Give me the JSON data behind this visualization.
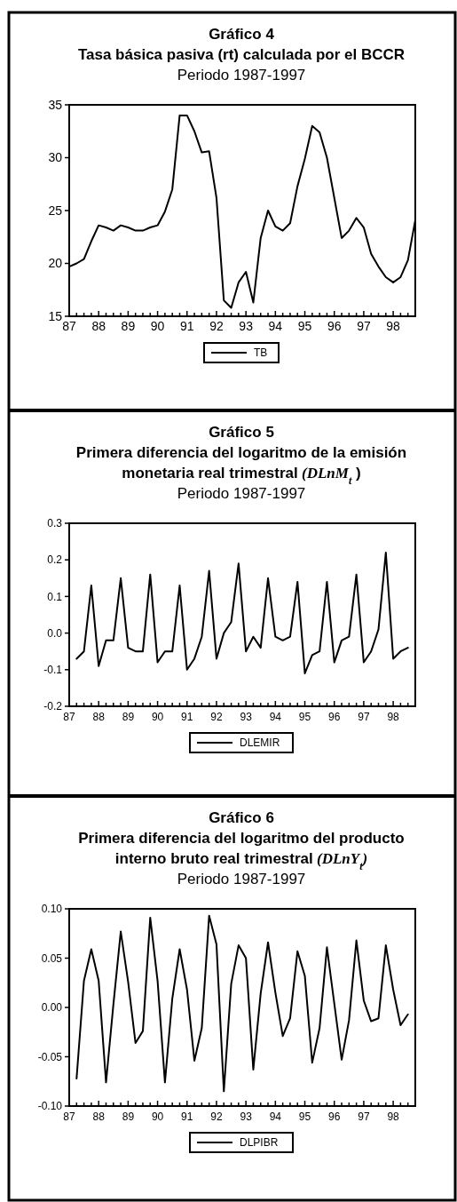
{
  "chart_data": [
    {
      "type": "line",
      "title": "Gráfico 4",
      "subtitle": "Tasa básica pasiva (rt) calculada por el BCCR",
      "annotations": [
        "Periodo 1987-1997"
      ],
      "legend": "bottom",
      "grid": false,
      "marker": "none",
      "line_style": "solid",
      "x": [
        1987,
        1987.25,
        1987.5,
        1987.75,
        1988,
        1988.25,
        1988.5,
        1988.75,
        1989,
        1989.25,
        1989.5,
        1989.75,
        1990,
        1990.25,
        1990.5,
        1990.75,
        1991,
        1991.25,
        1991.5,
        1991.75,
        1992,
        1992.25,
        1992.5,
        1992.75,
        1993,
        1993.25,
        1993.5,
        1993.75,
        1994,
        1994.25,
        1994.5,
        1994.75,
        1995,
        1995.25,
        1995.5,
        1995.75,
        1996,
        1996.25,
        1996.5,
        1996.75,
        1997,
        1997.25,
        1997.5,
        1997.75,
        1998,
        1998.25,
        1998.5,
        1998.75
      ],
      "series": [
        {
          "name": "TB",
          "color": "#000000",
          "values": [
            19.7,
            20.0,
            20.4,
            22.1,
            23.6,
            23.4,
            23.1,
            23.6,
            23.4,
            23.1,
            23.1,
            23.4,
            23.6,
            24.9,
            27.0,
            34.0,
            34.0,
            32.5,
            30.5,
            30.6,
            26.2,
            16.5,
            15.8,
            18.2,
            19.2,
            16.3,
            22.4,
            25.0,
            23.5,
            23.1,
            23.8,
            27.3,
            29.9,
            33.0,
            32.4,
            30.0,
            26.2,
            22.4,
            23.1,
            24.3,
            23.4,
            20.9,
            19.7,
            18.7,
            18.2,
            18.7,
            20.3,
            24.1
          ]
        }
      ],
      "xlim": [
        1987,
        1998.75
      ],
      "ylim": [
        15,
        35
      ],
      "yticks": [
        15,
        20,
        25,
        30,
        35
      ],
      "xticks": [
        {
          "value": 1987,
          "label": "87"
        },
        {
          "value": 1987.25,
          "label": null
        },
        {
          "value": 1987.5,
          "label": null
        },
        {
          "value": 1987.75,
          "label": null
        },
        {
          "value": 1988,
          "label": "88"
        },
        {
          "value": 1988.25,
          "label": null
        },
        {
          "value": 1988.5,
          "label": null
        },
        {
          "value": 1988.75,
          "label": null
        },
        {
          "value": 1989,
          "label": "89"
        },
        {
          "value": 1989.25,
          "label": null
        },
        {
          "value": 1989.5,
          "label": null
        },
        {
          "value": 1989.75,
          "label": null
        },
        {
          "value": 1990,
          "label": "90"
        },
        {
          "value": 1990.25,
          "label": null
        },
        {
          "value": 1990.5,
          "label": null
        },
        {
          "value": 1990.75,
          "label": null
        },
        {
          "value": 1991,
          "label": "91"
        },
        {
          "value": 1991.25,
          "label": null
        },
        {
          "value": 1991.5,
          "label": null
        },
        {
          "value": 1991.75,
          "label": null
        },
        {
          "value": 1992,
          "label": "92"
        },
        {
          "value": 1992.25,
          "label": null
        },
        {
          "value": 1992.5,
          "label": null
        },
        {
          "value": 1992.75,
          "label": null
        },
        {
          "value": 1993,
          "label": "93"
        },
        {
          "value": 1993.25,
          "label": null
        },
        {
          "value": 1993.5,
          "label": null
        },
        {
          "value": 1993.75,
          "label": null
        },
        {
          "value": 1994,
          "label": "94"
        },
        {
          "value": 1994.25,
          "label": null
        },
        {
          "value": 1994.5,
          "label": null
        },
        {
          "value": 1994.75,
          "label": null
        },
        {
          "value": 1995,
          "label": "95"
        },
        {
          "value": 1995.25,
          "label": null
        },
        {
          "value": 1995.5,
          "label": null
        },
        {
          "value": 1995.75,
          "label": null
        },
        {
          "value": 1996,
          "label": "96"
        },
        {
          "value": 1996.25,
          "label": null
        },
        {
          "value": 1996.5,
          "label": null
        },
        {
          "value": 1996.75,
          "label": null
        },
        {
          "value": 1997,
          "label": "97"
        },
        {
          "value": 1997.25,
          "label": null
        },
        {
          "value": 1997.5,
          "label": null
        },
        {
          "value": 1997.75,
          "label": null
        },
        {
          "value": 1998,
          "label": "98"
        },
        {
          "value": 1998.25,
          "label": null
        },
        {
          "value": 1998.5,
          "label": null
        }
      ]
    },
    {
      "type": "line",
      "title": "Gráfico 5",
      "subtitle": "Primera diferencia del logaritmo de la emisión monetaria real trimestral (DLnM$_{t}$ )",
      "annotations": [
        "Periodo 1987-1997"
      ],
      "legend": "bottom",
      "grid": false,
      "marker": "none",
      "line_style": "solid",
      "x": [
        1987.25,
        1987.5,
        1987.75,
        1988,
        1988.25,
        1988.5,
        1988.75,
        1989,
        1989.25,
        1989.5,
        1989.75,
        1990,
        1990.25,
        1990.5,
        1990.75,
        1991,
        1991.25,
        1991.5,
        1991.75,
        1992,
        1992.25,
        1992.5,
        1992.75,
        1993,
        1993.25,
        1993.5,
        1993.75,
        1994,
        1994.25,
        1994.5,
        1994.75,
        1995,
        1995.25,
        1995.5,
        1995.75,
        1996,
        1996.25,
        1996.5,
        1996.75,
        1997,
        1997.25,
        1997.5,
        1997.75,
        1998,
        1998.25,
        1998.5
      ],
      "series": [
        {
          "name": "DLEMIR",
          "color": "#000000",
          "values": [
            -0.07,
            -0.05,
            0.13,
            -0.09,
            -0.02,
            -0.02,
            0.15,
            -0.04,
            -0.05,
            -0.05,
            0.16,
            -0.08,
            -0.05,
            -0.05,
            0.13,
            -0.1,
            -0.07,
            -0.01,
            0.17,
            -0.07,
            0.0,
            0.03,
            0.19,
            -0.05,
            -0.01,
            -0.04,
            0.15,
            -0.01,
            -0.02,
            -0.01,
            0.14,
            -0.11,
            -0.06,
            -0.05,
            0.14,
            -0.08,
            -0.02,
            -0.01,
            0.16,
            -0.08,
            -0.05,
            0.01,
            0.22,
            -0.07,
            -0.05,
            -0.04
          ]
        }
      ],
      "xlim": [
        1987,
        1998.75
      ],
      "ylim": [
        -0.2,
        0.3
      ],
      "yticks": [
        -0.2,
        -0.1,
        {
          "value": 0,
          "label": "0.0"
        },
        0.1,
        0.2,
        0.3
      ],
      "xticks": [
        {
          "value": 1987,
          "label": "87"
        },
        {
          "value": 1987.25,
          "label": null
        },
        {
          "value": 1987.5,
          "label": null
        },
        {
          "value": 1987.75,
          "label": null
        },
        {
          "value": 1988,
          "label": "88"
        },
        {
          "value": 1988.25,
          "label": null
        },
        {
          "value": 1988.5,
          "label": null
        },
        {
          "value": 1988.75,
          "label": null
        },
        {
          "value": 1989,
          "label": "89"
        },
        {
          "value": 1989.25,
          "label": null
        },
        {
          "value": 1989.5,
          "label": null
        },
        {
          "value": 1989.75,
          "label": null
        },
        {
          "value": 1990,
          "label": "90"
        },
        {
          "value": 1990.25,
          "label": null
        },
        {
          "value": 1990.5,
          "label": null
        },
        {
          "value": 1990.75,
          "label": null
        },
        {
          "value": 1991,
          "label": "91"
        },
        {
          "value": 1991.25,
          "label": null
        },
        {
          "value": 1991.5,
          "label": null
        },
        {
          "value": 1991.75,
          "label": null
        },
        {
          "value": 1992,
          "label": "92"
        },
        {
          "value": 1992.25,
          "label": null
        },
        {
          "value": 1992.5,
          "label": null
        },
        {
          "value": 1992.75,
          "label": null
        },
        {
          "value": 1993,
          "label": "93"
        },
        {
          "value": 1993.25,
          "label": null
        },
        {
          "value": 1993.5,
          "label": null
        },
        {
          "value": 1993.75,
          "label": null
        },
        {
          "value": 1994,
          "label": "94"
        },
        {
          "value": 1994.25,
          "label": null
        },
        {
          "value": 1994.5,
          "label": null
        },
        {
          "value": 1994.75,
          "label": null
        },
        {
          "value": 1995,
          "label": "95"
        },
        {
          "value": 1995.25,
          "label": null
        },
        {
          "value": 1995.5,
          "label": null
        },
        {
          "value": 1995.75,
          "label": null
        },
        {
          "value": 1996,
          "label": "96"
        },
        {
          "value": 1996.25,
          "label": null
        },
        {
          "value": 1996.5,
          "label": null
        },
        {
          "value": 1996.75,
          "label": null
        },
        {
          "value": 1997,
          "label": "97"
        },
        {
          "value": 1997.25,
          "label": null
        },
        {
          "value": 1997.5,
          "label": null
        },
        {
          "value": 1997.75,
          "label": null
        },
        {
          "value": 1998,
          "label": "98"
        },
        {
          "value": 1998.25,
          "label": null
        },
        {
          "value": 1998.5,
          "label": null
        }
      ]
    },
    {
      "type": "line",
      "title": "Gráfico 6",
      "subtitle": "Primera diferencia del logaritmo del producto interno bruto real trimestral (DLnY$_{t}$)",
      "annotations": [
        "Periodo 1987-1997"
      ],
      "legend": "bottom",
      "grid": false,
      "marker": "none",
      "line_style": "solid",
      "x": [
        1987.25,
        1987.5,
        1987.75,
        1988,
        1988.25,
        1988.5,
        1988.75,
        1989,
        1989.25,
        1989.5,
        1989.75,
        1990,
        1990.25,
        1990.5,
        1990.75,
        1991,
        1991.25,
        1991.5,
        1991.75,
        1992,
        1992.25,
        1992.5,
        1992.75,
        1993,
        1993.25,
        1993.5,
        1993.75,
        1994,
        1994.25,
        1994.5,
        1994.75,
        1995,
        1995.25,
        1995.5,
        1995.75,
        1996,
        1996.25,
        1996.5,
        1996.75,
        1997,
        1997.25,
        1997.5,
        1997.75,
        1998,
        1998.25,
        1998.5
      ],
      "series": [
        {
          "name": "DLPIBR",
          "color": "#000000",
          "values": [
            -0.072,
            0.027,
            0.059,
            0.027,
            -0.076,
            0.003,
            0.077,
            0.026,
            -0.036,
            -0.024,
            0.091,
            0.027,
            -0.076,
            0.009,
            0.059,
            0.018,
            -0.054,
            -0.021,
            0.093,
            0.064,
            -0.085,
            0.024,
            0.063,
            0.05,
            -0.063,
            0.014,
            0.066,
            0.015,
            -0.029,
            -0.011,
            0.057,
            0.032,
            -0.056,
            -0.021,
            0.061,
            0.004,
            -0.053,
            -0.013,
            0.068,
            0.007,
            -0.014,
            -0.011,
            0.063,
            0.018,
            -0.018,
            -0.007
          ]
        }
      ],
      "xlim": [
        1987,
        1998.75
      ],
      "ylim": [
        -0.1,
        0.1
      ],
      "yticks": [
        {
          "value": -0.1,
          "label": "-0.10"
        },
        {
          "value": -0.05,
          "label": "-0.05"
        },
        {
          "value": 0,
          "label": "0.00"
        },
        {
          "value": 0.05,
          "label": "0.05"
        },
        {
          "value": 0.1,
          "label": "0.10"
        }
      ],
      "xticks": [
        {
          "value": 1987,
          "label": "87"
        },
        {
          "value": 1987.25,
          "label": null
        },
        {
          "value": 1987.5,
          "label": null
        },
        {
          "value": 1987.75,
          "label": null
        },
        {
          "value": 1988,
          "label": "88"
        },
        {
          "value": 1988.25,
          "label": null
        },
        {
          "value": 1988.5,
          "label": null
        },
        {
          "value": 1988.75,
          "label": null
        },
        {
          "value": 1989,
          "label": "89"
        },
        {
          "value": 1989.25,
          "label": null
        },
        {
          "value": 1989.5,
          "label": null
        },
        {
          "value": 1989.75,
          "label": null
        },
        {
          "value": 1990,
          "label": "90"
        },
        {
          "value": 1990.25,
          "label": null
        },
        {
          "value": 1990.5,
          "label": null
        },
        {
          "value": 1990.75,
          "label": null
        },
        {
          "value": 1991,
          "label": "91"
        },
        {
          "value": 1991.25,
          "label": null
        },
        {
          "value": 1991.5,
          "label": null
        },
        {
          "value": 1991.75,
          "label": null
        },
        {
          "value": 1992,
          "label": "92"
        },
        {
          "value": 1992.25,
          "label": null
        },
        {
          "value": 1992.5,
          "label": null
        },
        {
          "value": 1992.75,
          "label": null
        },
        {
          "value": 1993,
          "label": "93"
        },
        {
          "value": 1993.25,
          "label": null
        },
        {
          "value": 1993.5,
          "label": null
        },
        {
          "value": 1993.75,
          "label": null
        },
        {
          "value": 1994,
          "label": "94"
        },
        {
          "value": 1994.25,
          "label": null
        },
        {
          "value": 1994.5,
          "label": null
        },
        {
          "value": 1994.75,
          "label": null
        },
        {
          "value": 1995,
          "label": "95"
        },
        {
          "value": 1995.25,
          "label": null
        },
        {
          "value": 1995.5,
          "label": null
        },
        {
          "value": 1995.75,
          "label": null
        },
        {
          "value": 1996,
          "label": "96"
        },
        {
          "value": 1996.25,
          "label": null
        },
        {
          "value": 1996.5,
          "label": null
        },
        {
          "value": 1996.75,
          "label": null
        },
        {
          "value": 1997,
          "label": "97"
        },
        {
          "value": 1997.25,
          "label": null
        },
        {
          "value": 1997.5,
          "label": null
        },
        {
          "value": 1997.75,
          "label": null
        },
        {
          "value": 1998,
          "label": "98"
        },
        {
          "value": 1998.25,
          "label": null
        },
        {
          "value": 1998.5,
          "label": null
        }
      ]
    }
  ]
}
